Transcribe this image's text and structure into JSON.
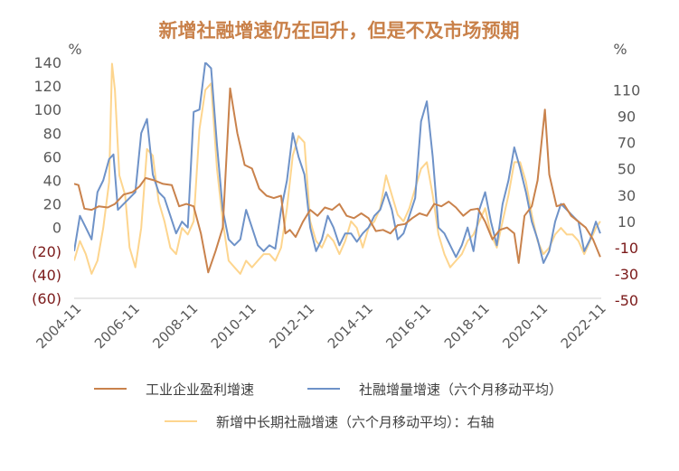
{
  "chart_data": {
    "type": "line",
    "title": "新增社融增速仍在回升，但是不及市场预期",
    "left_axis": {
      "unit": "%",
      "range": [
        -60,
        140
      ],
      "ticks": [
        140,
        120,
        100,
        80,
        60,
        40,
        20,
        0,
        -20,
        -40,
        -60
      ],
      "tick_labels": [
        "140",
        "120",
        "100",
        "80",
        "60",
        "40",
        "20",
        "0",
        "(20)",
        "(40)",
        "(60)"
      ]
    },
    "right_axis": {
      "unit": "%",
      "range": [
        -50,
        120
      ],
      "ticks": [
        110,
        90,
        70,
        50,
        30,
        10,
        -10,
        -30,
        -50
      ],
      "tick_labels": [
        "110",
        "90",
        "70",
        "50",
        "30",
        "10",
        "-10",
        "-30",
        "-50"
      ]
    },
    "x_axis": {
      "range": [
        2004.75,
        2022.833
      ],
      "tick_positions": [
        2004.833,
        2006.833,
        2008.833,
        2010.833,
        2012.833,
        2014.833,
        2016.833,
        2018.833,
        2020.833,
        2022.833
      ],
      "tick_labels": [
        "2004-11",
        "2006-11",
        "2008-11",
        "2010-11",
        "2012-11",
        "2014-11",
        "2016-11",
        "2018-11",
        "2020-11",
        "2022-11"
      ]
    },
    "legend": [
      "工业企业盈利增速",
      "社融增量增速（六个月移动平均）",
      "新增中长期社融增速（六个月移动平均）：右轴"
    ],
    "series": [
      {
        "name": "工业企业盈利增速",
        "axis": "left",
        "color": "#c9824c",
        "points": [
          [
            2004.75,
            37
          ],
          [
            2004.9,
            36
          ],
          [
            2005.1,
            16
          ],
          [
            2005.35,
            15
          ],
          [
            2005.6,
            18
          ],
          [
            2005.9,
            17
          ],
          [
            2006.15,
            20
          ],
          [
            2006.45,
            28
          ],
          [
            2006.75,
            30
          ],
          [
            2007.0,
            35
          ],
          [
            2007.2,
            42
          ],
          [
            2007.5,
            40
          ],
          [
            2007.8,
            37
          ],
          [
            2008.1,
            36
          ],
          [
            2008.35,
            18
          ],
          [
            2008.6,
            20
          ],
          [
            2008.85,
            18
          ],
          [
            2009.1,
            -5
          ],
          [
            2009.35,
            -38
          ],
          [
            2009.6,
            -20
          ],
          [
            2009.85,
            0
          ],
          [
            2010.1,
            118
          ],
          [
            2010.35,
            80
          ],
          [
            2010.6,
            53
          ],
          [
            2010.85,
            50
          ],
          [
            2011.1,
            33
          ],
          [
            2011.35,
            27
          ],
          [
            2011.6,
            25
          ],
          [
            2011.85,
            27
          ],
          [
            2012.0,
            -5
          ],
          [
            2012.15,
            -2
          ],
          [
            2012.35,
            -8
          ],
          [
            2012.6,
            5
          ],
          [
            2012.85,
            15
          ],
          [
            2013.1,
            10
          ],
          [
            2013.35,
            17
          ],
          [
            2013.6,
            15
          ],
          [
            2013.85,
            20
          ],
          [
            2014.1,
            10
          ],
          [
            2014.35,
            8
          ],
          [
            2014.6,
            12
          ],
          [
            2014.85,
            8
          ],
          [
            2015.1,
            -3
          ],
          [
            2015.35,
            -2
          ],
          [
            2015.6,
            -5
          ],
          [
            2015.85,
            2
          ],
          [
            2016.1,
            3
          ],
          [
            2016.35,
            8
          ],
          [
            2016.6,
            12
          ],
          [
            2016.85,
            10
          ],
          [
            2017.1,
            20
          ],
          [
            2017.35,
            18
          ],
          [
            2017.6,
            22
          ],
          [
            2017.85,
            17
          ],
          [
            2018.1,
            10
          ],
          [
            2018.35,
            15
          ],
          [
            2018.6,
            16
          ],
          [
            2018.85,
            5
          ],
          [
            2019.1,
            -10
          ],
          [
            2019.35,
            -2
          ],
          [
            2019.6,
            0
          ],
          [
            2019.85,
            -5
          ],
          [
            2020.0,
            -30
          ],
          [
            2020.2,
            10
          ],
          [
            2020.45,
            18
          ],
          [
            2020.65,
            40
          ],
          [
            2020.9,
            100
          ],
          [
            2021.05,
            45
          ],
          [
            2021.3,
            18
          ],
          [
            2021.55,
            20
          ],
          [
            2021.8,
            10
          ],
          [
            2022.05,
            5
          ],
          [
            2022.3,
            0
          ],
          [
            2022.55,
            -10
          ],
          [
            2022.8,
            -25
          ]
        ]
      },
      {
        "name": "社融增量增速（六个月移动平均）",
        "axis": "left",
        "color": "#6e92c8",
        "points": [
          [
            2004.75,
            -20
          ],
          [
            2004.95,
            10
          ],
          [
            2005.15,
            0
          ],
          [
            2005.35,
            -10
          ],
          [
            2005.55,
            30
          ],
          [
            2005.75,
            40
          ],
          [
            2005.95,
            58
          ],
          [
            2006.1,
            62
          ],
          [
            2006.25,
            15
          ],
          [
            2006.45,
            20
          ],
          [
            2006.65,
            25
          ],
          [
            2006.85,
            30
          ],
          [
            2007.05,
            80
          ],
          [
            2007.25,
            92
          ],
          [
            2007.45,
            45
          ],
          [
            2007.65,
            30
          ],
          [
            2007.85,
            25
          ],
          [
            2008.05,
            10
          ],
          [
            2008.25,
            -5
          ],
          [
            2008.45,
            5
          ],
          [
            2008.65,
            0
          ],
          [
            2008.85,
            98
          ],
          [
            2009.05,
            100
          ],
          [
            2009.25,
            140
          ],
          [
            2009.45,
            135
          ],
          [
            2009.65,
            70
          ],
          [
            2009.85,
            15
          ],
          [
            2010.05,
            -10
          ],
          [
            2010.25,
            -15
          ],
          [
            2010.45,
            -10
          ],
          [
            2010.65,
            15
          ],
          [
            2010.85,
            0
          ],
          [
            2011.05,
            -15
          ],
          [
            2011.25,
            -20
          ],
          [
            2011.45,
            -15
          ],
          [
            2011.65,
            -18
          ],
          [
            2011.85,
            15
          ],
          [
            2012.05,
            40
          ],
          [
            2012.25,
            80
          ],
          [
            2012.45,
            60
          ],
          [
            2012.65,
            45
          ],
          [
            2012.85,
            0
          ],
          [
            2013.05,
            -20
          ],
          [
            2013.25,
            -10
          ],
          [
            2013.45,
            10
          ],
          [
            2013.65,
            0
          ],
          [
            2013.85,
            -15
          ],
          [
            2014.05,
            -5
          ],
          [
            2014.25,
            -5
          ],
          [
            2014.45,
            -12
          ],
          [
            2014.65,
            -5
          ],
          [
            2014.85,
            0
          ],
          [
            2015.05,
            10
          ],
          [
            2015.25,
            15
          ],
          [
            2015.45,
            30
          ],
          [
            2015.65,
            15
          ],
          [
            2015.85,
            -10
          ],
          [
            2016.05,
            -5
          ],
          [
            2016.25,
            10
          ],
          [
            2016.45,
            25
          ],
          [
            2016.65,
            90
          ],
          [
            2016.85,
            107
          ],
          [
            2017.05,
            60
          ],
          [
            2017.25,
            0
          ],
          [
            2017.45,
            -5
          ],
          [
            2017.65,
            -15
          ],
          [
            2017.85,
            -25
          ],
          [
            2018.05,
            -15
          ],
          [
            2018.25,
            0
          ],
          [
            2018.45,
            -20
          ],
          [
            2018.65,
            15
          ],
          [
            2018.85,
            30
          ],
          [
            2019.05,
            5
          ],
          [
            2019.25,
            -15
          ],
          [
            2019.45,
            20
          ],
          [
            2019.65,
            40
          ],
          [
            2019.85,
            68
          ],
          [
            2020.05,
            50
          ],
          [
            2020.25,
            30
          ],
          [
            2020.45,
            5
          ],
          [
            2020.65,
            -10
          ],
          [
            2020.85,
            -30
          ],
          [
            2021.05,
            -20
          ],
          [
            2021.25,
            5
          ],
          [
            2021.45,
            20
          ],
          [
            2021.65,
            15
          ],
          [
            2021.85,
            10
          ],
          [
            2022.05,
            5
          ],
          [
            2022.25,
            -20
          ],
          [
            2022.45,
            -10
          ],
          [
            2022.65,
            5
          ],
          [
            2022.8,
            -5
          ]
        ]
      },
      {
        "name": "新增中长期社融增速（六个月移动平均）：右轴",
        "axis": "right",
        "color": "#fdd58e",
        "points": [
          [
            2004.75,
            -20
          ],
          [
            2004.95,
            -5
          ],
          [
            2005.15,
            -15
          ],
          [
            2005.35,
            -30
          ],
          [
            2005.55,
            -20
          ],
          [
            2005.75,
            5
          ],
          [
            2005.95,
            40
          ],
          [
            2006.05,
            130
          ],
          [
            2006.15,
            110
          ],
          [
            2006.3,
            45
          ],
          [
            2006.5,
            30
          ],
          [
            2006.65,
            -10
          ],
          [
            2006.85,
            -25
          ],
          [
            2007.05,
            5
          ],
          [
            2007.25,
            65
          ],
          [
            2007.45,
            60
          ],
          [
            2007.65,
            25
          ],
          [
            2007.85,
            10
          ],
          [
            2008.05,
            -10
          ],
          [
            2008.25,
            -15
          ],
          [
            2008.45,
            5
          ],
          [
            2008.65,
            0
          ],
          [
            2008.85,
            10
          ],
          [
            2009.05,
            80
          ],
          [
            2009.25,
            110
          ],
          [
            2009.45,
            115
          ],
          [
            2009.65,
            50
          ],
          [
            2009.85,
            10
          ],
          [
            2010.05,
            -20
          ],
          [
            2010.25,
            -25
          ],
          [
            2010.45,
            -30
          ],
          [
            2010.65,
            -20
          ],
          [
            2010.85,
            -25
          ],
          [
            2011.05,
            -20
          ],
          [
            2011.25,
            -15
          ],
          [
            2011.45,
            -15
          ],
          [
            2011.65,
            -20
          ],
          [
            2011.85,
            -10
          ],
          [
            2012.05,
            20
          ],
          [
            2012.25,
            60
          ],
          [
            2012.45,
            75
          ],
          [
            2012.65,
            70
          ],
          [
            2012.85,
            10
          ],
          [
            2013.05,
            -5
          ],
          [
            2013.25,
            -10
          ],
          [
            2013.45,
            0
          ],
          [
            2013.65,
            -5
          ],
          [
            2013.85,
            -15
          ],
          [
            2014.05,
            -5
          ],
          [
            2014.25,
            10
          ],
          [
            2014.45,
            5
          ],
          [
            2014.65,
            -10
          ],
          [
            2014.85,
            5
          ],
          [
            2015.05,
            10
          ],
          [
            2015.25,
            20
          ],
          [
            2015.45,
            45
          ],
          [
            2015.65,
            30
          ],
          [
            2015.85,
            15
          ],
          [
            2016.05,
            10
          ],
          [
            2016.25,
            20
          ],
          [
            2016.45,
            35
          ],
          [
            2016.65,
            50
          ],
          [
            2016.85,
            55
          ],
          [
            2017.05,
            30
          ],
          [
            2017.25,
            0
          ],
          [
            2017.45,
            -15
          ],
          [
            2017.65,
            -25
          ],
          [
            2017.85,
            -20
          ],
          [
            2018.05,
            -15
          ],
          [
            2018.25,
            -5
          ],
          [
            2018.45,
            0
          ],
          [
            2018.65,
            10
          ],
          [
            2018.85,
            20
          ],
          [
            2019.05,
            0
          ],
          [
            2019.25,
            -10
          ],
          [
            2019.45,
            10
          ],
          [
            2019.65,
            30
          ],
          [
            2019.85,
            55
          ],
          [
            2020.05,
            55
          ],
          [
            2020.25,
            40
          ],
          [
            2020.45,
            15
          ],
          [
            2020.65,
            -5
          ],
          [
            2020.85,
            -15
          ],
          [
            2021.05,
            -10
          ],
          [
            2021.25,
            0
          ],
          [
            2021.45,
            5
          ],
          [
            2021.65,
            0
          ],
          [
            2021.85,
            0
          ],
          [
            2022.05,
            -5
          ],
          [
            2022.25,
            -15
          ],
          [
            2022.45,
            -5
          ],
          [
            2022.65,
            5
          ],
          [
            2022.8,
            10
          ]
        ]
      }
    ]
  }
}
